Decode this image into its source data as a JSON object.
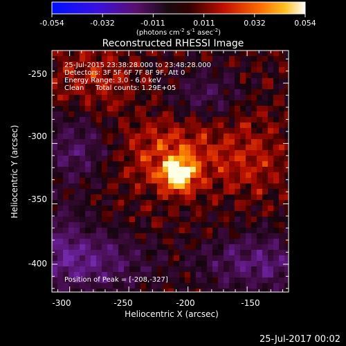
{
  "colorbar": {
    "ticks": [
      "-0.054",
      "-0.032",
      "-0.011",
      "0.011",
      "0.032",
      "0.054"
    ],
    "units_main": "(photons cm",
    "units_exp1": "-2",
    "units_s": " s",
    "units_exp2": "-1",
    "units_asec": " asec",
    "units_exp3": "-2",
    "units_close": ")"
  },
  "title": "Reconstructed RHESSI Image",
  "info": {
    "line1": "25-Jul-2015 23:38:28.000 to 23:48:28.000",
    "line2": "Detectors: 3F 5F 6F 7F 8F 9F, Att 0",
    "line3": "Energy Range: 3.0 - 6.0 keV",
    "line4_a": "Clean",
    "line4_b": "Total counts: 1.29E+05"
  },
  "peak_label": "Position of Peak = [-208,-327]",
  "x_axis": {
    "label": "Heliocentric X (arcsec)",
    "ticks": [
      "-300",
      "-250",
      "-200",
      "-150"
    ],
    "range": [
      -315,
      -115
    ]
  },
  "y_axis": {
    "label": "Heliocentric Y (arcsec)",
    "ticks": [
      "-250",
      "-300",
      "-350",
      "-400"
    ],
    "range": [
      -423,
      -223
    ]
  },
  "peak": {
    "x": -208,
    "y": -327
  },
  "footer_date": "25-Jul-2017 00:02"
}
